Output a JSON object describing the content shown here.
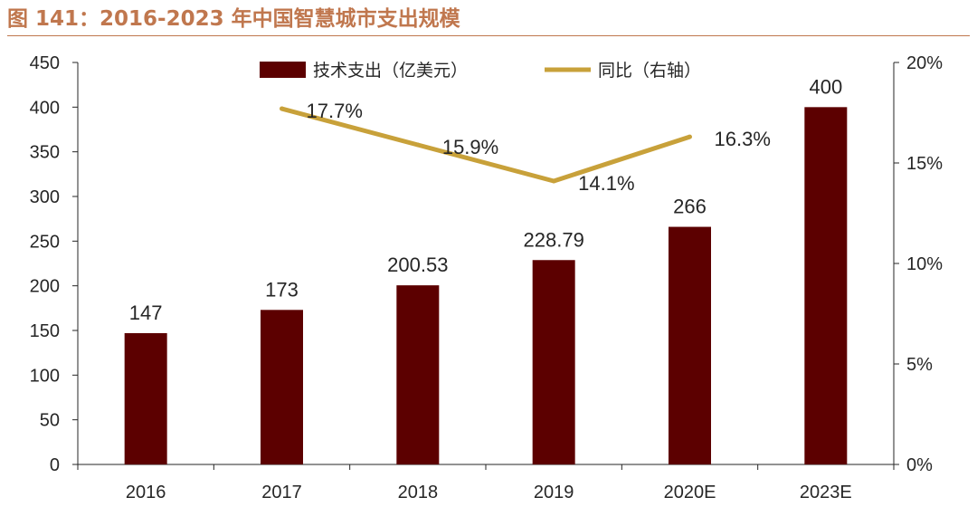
{
  "title": "图 141：2016-2023 年中国智慧城市支出规模",
  "colors": {
    "bar": "#5c0000",
    "line": "#c8a13a",
    "title": "#c0774e",
    "axis": "#262626"
  },
  "chart_data": {
    "type": "bar",
    "categories": [
      "2016",
      "2017",
      "2018",
      "2019",
      "2020E",
      "2023E"
    ],
    "series": [
      {
        "name": "技术支出（亿美元）",
        "type": "bar",
        "axis": "left",
        "values": [
          147,
          173,
          200.53,
          228.79,
          266,
          400
        ],
        "labels": [
          "147",
          "173",
          "200.53",
          "228.79",
          "266",
          "400"
        ]
      },
      {
        "name": "同比（右轴）",
        "type": "line",
        "axis": "right",
        "values": [
          null,
          17.7,
          15.9,
          14.1,
          16.3,
          null
        ],
        "labels": [
          "",
          "17.7%",
          "15.9%",
          "14.1%",
          "16.3%",
          ""
        ]
      }
    ],
    "y_left": {
      "min": 0,
      "max": 450,
      "step": 50,
      "ticks": [
        "0",
        "50",
        "100",
        "150",
        "200",
        "250",
        "300",
        "350",
        "400",
        "450"
      ]
    },
    "y_right": {
      "min": 0,
      "max": 20,
      "step": 5,
      "ticks": [
        "0%",
        "5%",
        "10%",
        "15%",
        "20%"
      ]
    },
    "legend": "top-center",
    "grid": false
  }
}
